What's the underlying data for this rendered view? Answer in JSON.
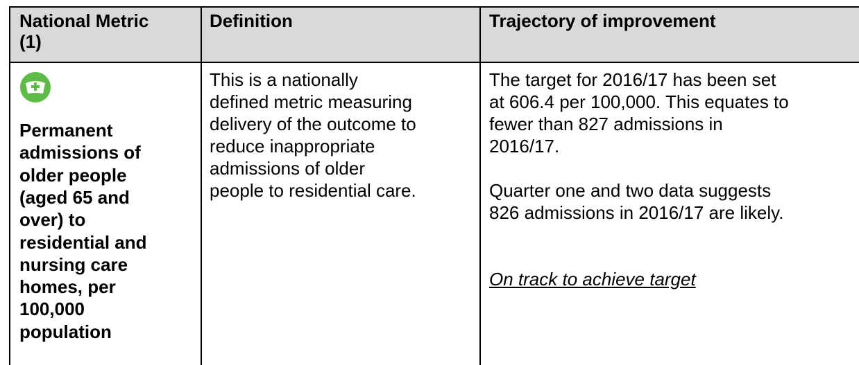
{
  "table": {
    "header": [
      [
        "National Metric",
        "(1)"
      ],
      [
        "Definition"
      ],
      [
        "Trajectory of improvement"
      ]
    ],
    "rows": [
      {
        "metric": [
          "Permanent",
          "admissions of",
          "older people",
          "(aged 65 and",
          "over) to",
          "residential and",
          "nursing care",
          "homes, per",
          "100,000",
          "population"
        ],
        "definition": [
          "This is a nationally",
          "defined metric measuring",
          "delivery of the outcome to",
          "reduce inappropriate",
          "admissions of older",
          "people to residential care."
        ],
        "trajectory": [
          [
            "The target for 2016/17 has been set",
            "at 606.4 per 100,000. This equates to",
            "fewer than 827 admissions in",
            "2016/17."
          ],
          [
            "Quarter one and two data suggests",
            "826 admissions in 2016/17 are likely."
          ],
          [
            "On track to achieve target"
          ]
        ]
      }
    ]
  }
}
